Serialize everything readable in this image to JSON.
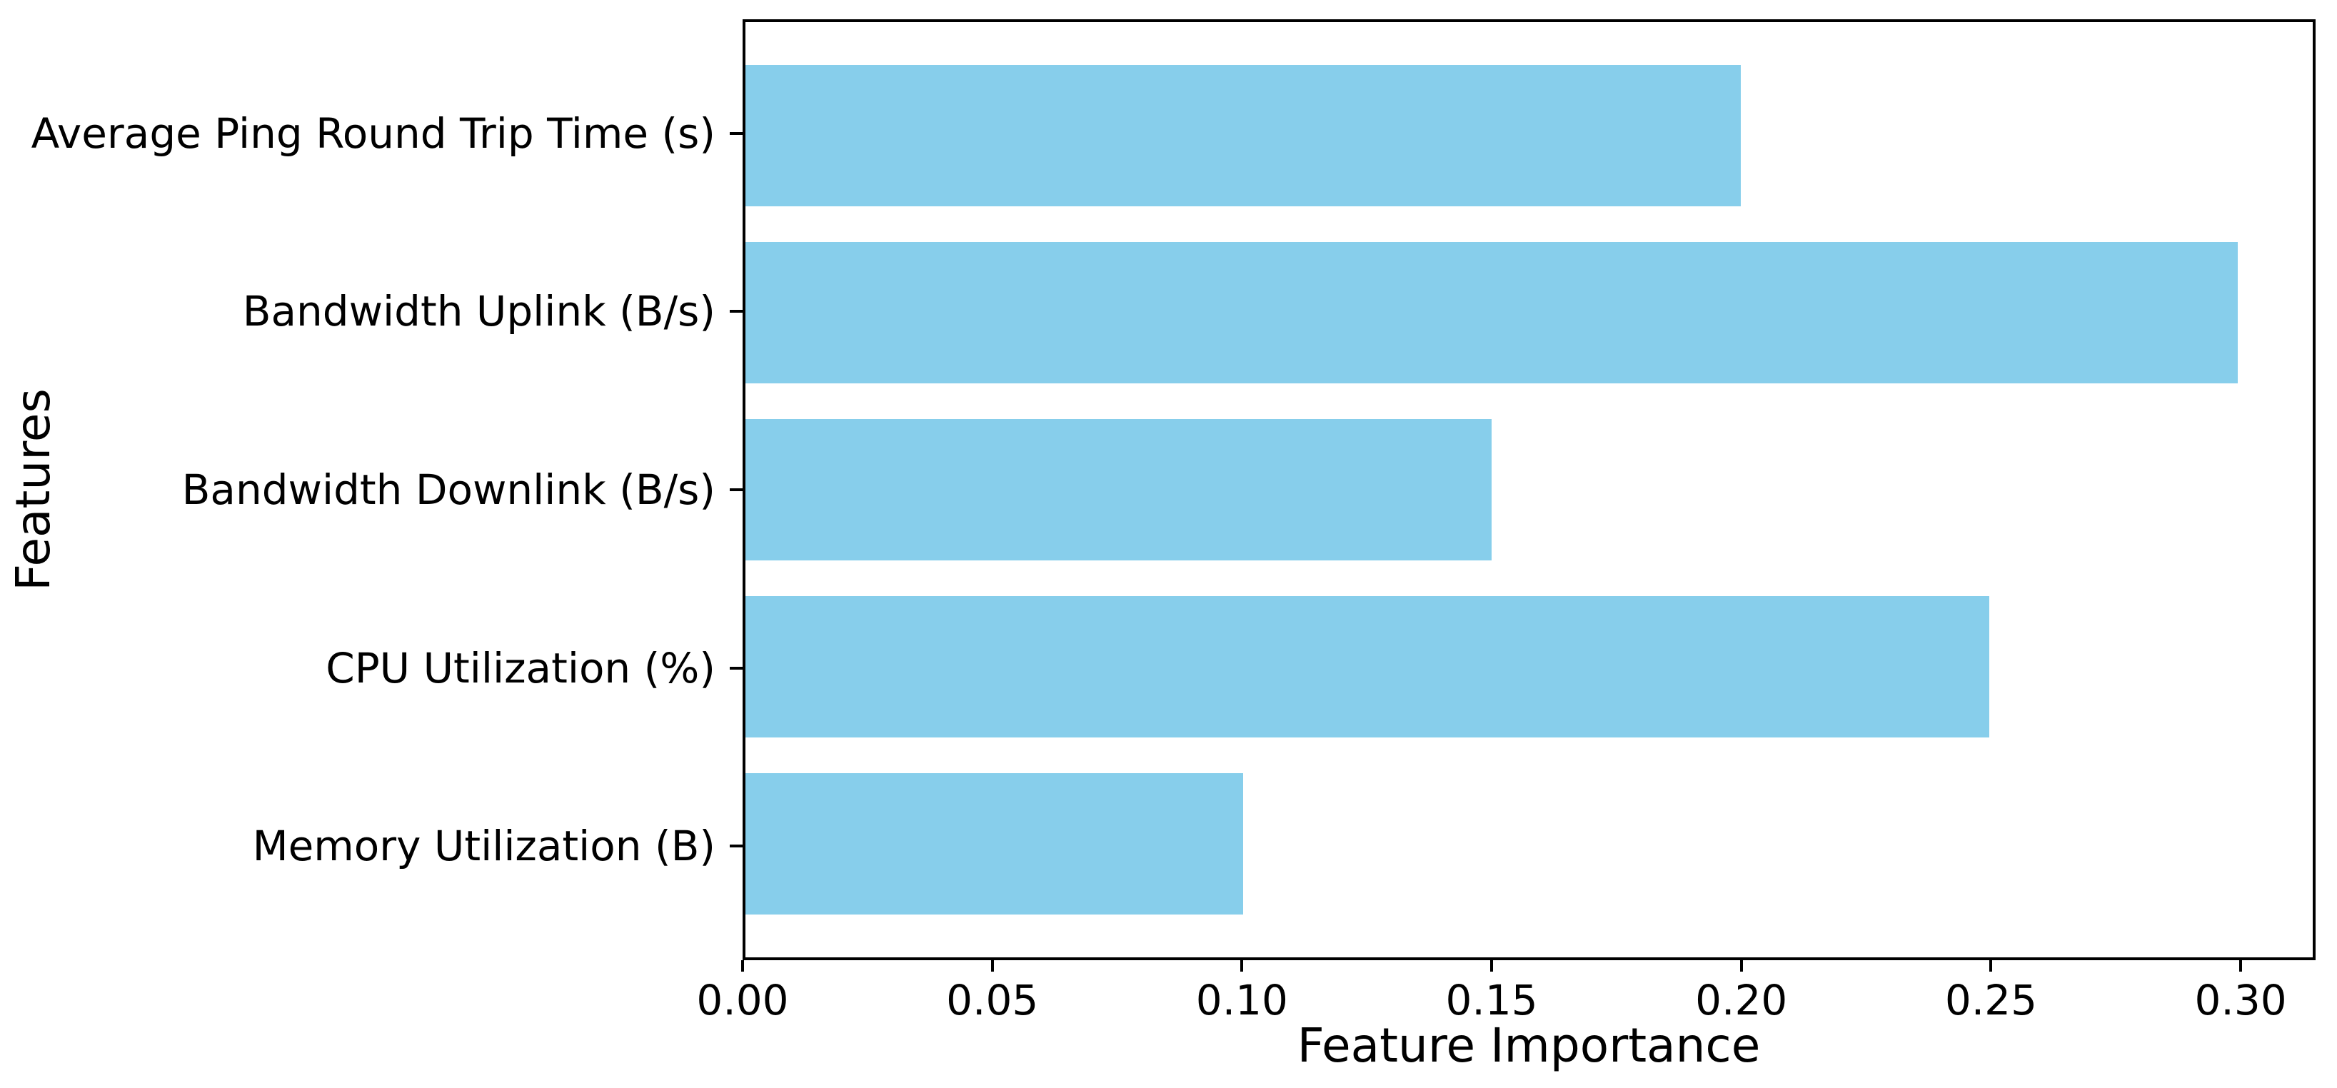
{
  "chart_data": {
    "type": "bar",
    "orientation": "horizontal",
    "title": "",
    "xlabel": "Feature Importance",
    "ylabel": "Features",
    "categories": [
      "Average Ping Round Trip Time (s)",
      "Bandwidth Uplink (B/s)",
      "Bandwidth Downlink (B/s)",
      "CPU Utilization (%)",
      "Memory Utilization (B)"
    ],
    "values": [
      0.2,
      0.3,
      0.15,
      0.25,
      0.1
    ],
    "xlim": [
      0,
      0.315
    ],
    "xtick_values": [
      0.0,
      0.05,
      0.1,
      0.15,
      0.2,
      0.25,
      0.3
    ],
    "xtick_labels": [
      "0.00",
      "0.05",
      "0.10",
      "0.15",
      "0.20",
      "0.25",
      "0.30"
    ],
    "bar_color": "#87CEEB",
    "axis_color": "#000000",
    "text_color": "#000000",
    "background_color": "#ffffff",
    "grid": false,
    "legend_position": "none"
  }
}
